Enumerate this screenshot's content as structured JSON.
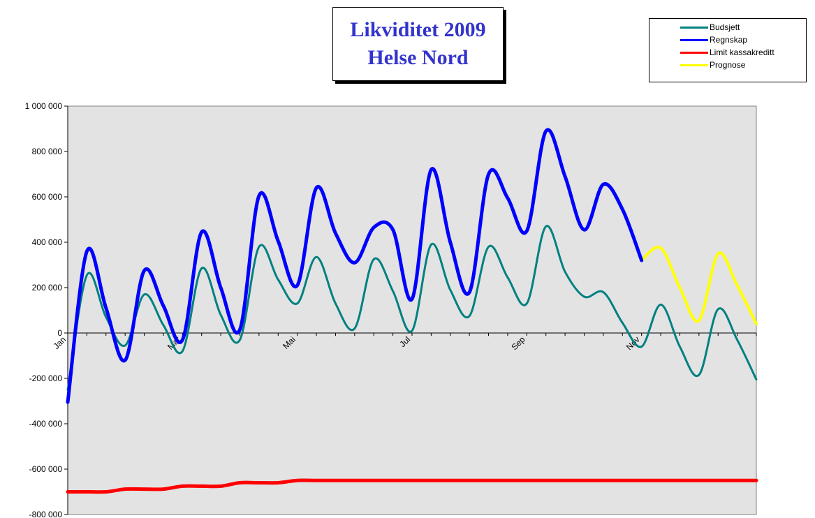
{
  "chart_data": {
    "type": "line",
    "title_lines": [
      "Likviditet 2009",
      "Helse Nord"
    ],
    "y_ticks": [
      "1 000 000",
      "800 000",
      "600 000",
      "400 000",
      "200 000",
      "0",
      "-200 000",
      "-400 000",
      "-600 000",
      "-800 000"
    ],
    "ylim": [
      -800000,
      1000000
    ],
    "xlim": [
      0,
      36
    ],
    "x_tick_labels": [
      {
        "x": 0,
        "label": "Jan"
      },
      {
        "x": 6,
        "label": "Mar"
      },
      {
        "x": 12,
        "label": "Mai"
      },
      {
        "x": 18,
        "label": "Jul"
      },
      {
        "x": 24,
        "label": "Sep"
      },
      {
        "x": 30,
        "label": "Nov"
      }
    ],
    "grid": false,
    "legend_position": "top-right",
    "plot_background": "#e3e3e3",
    "series": [
      {
        "name": "Budsjett",
        "color": "#008080",
        "width": 3,
        "x": [
          0,
          1,
          2,
          3,
          4,
          5,
          6,
          7,
          8,
          9,
          10,
          11,
          12,
          13,
          14,
          15,
          16,
          17,
          18,
          19,
          20,
          21,
          22,
          23,
          24,
          25,
          26,
          27,
          28,
          29,
          30,
          31,
          32,
          33,
          34,
          35,
          36
        ],
        "values": [
          -250000,
          255000,
          70000,
          -55000,
          170000,
          35000,
          -80000,
          285000,
          80000,
          -30000,
          380000,
          235000,
          130000,
          335000,
          130000,
          20000,
          325000,
          185000,
          10000,
          390000,
          190000,
          75000,
          380000,
          245000,
          130000,
          470000,
          270000,
          160000,
          180000,
          45000,
          -60000,
          125000,
          -60000,
          -185000,
          105000,
          -30000,
          -205000
        ]
      },
      {
        "name": "Regnskap",
        "color": "#0000ff",
        "width": 5,
        "x": [
          0,
          1,
          2,
          3,
          4,
          5,
          6,
          7,
          8,
          9,
          10,
          11,
          12,
          13,
          14,
          15,
          16,
          17,
          18,
          19,
          20,
          21,
          22,
          23,
          24,
          25,
          26,
          27,
          28,
          29,
          30
        ],
        "values": [
          -305000,
          360000,
          110000,
          -120000,
          275000,
          120000,
          -30000,
          445000,
          200000,
          15000,
          605000,
          405000,
          210000,
          640000,
          440000,
          310000,
          465000,
          455000,
          150000,
          720000,
          400000,
          180000,
          700000,
          595000,
          450000,
          890000,
          690000,
          455000,
          655000,
          545000,
          320000
        ]
      },
      {
        "name": "Limit kassakreditt",
        "color": "#ff0000",
        "width": 5,
        "x": [
          0,
          1,
          2,
          3,
          4,
          5,
          6,
          7,
          8,
          9,
          10,
          11,
          12,
          13,
          14,
          15,
          16,
          17,
          18,
          19,
          20,
          21,
          22,
          23,
          24,
          25,
          26,
          27,
          28,
          29,
          30,
          31,
          32,
          33,
          34,
          35,
          36
        ],
        "values": [
          -700000,
          -700000,
          -700000,
          -688000,
          -688000,
          -688000,
          -675000,
          -675000,
          -675000,
          -660000,
          -660000,
          -660000,
          -650000,
          -650000,
          -650000,
          -650000,
          -650000,
          -650000,
          -650000,
          -650000,
          -650000,
          -650000,
          -650000,
          -650000,
          -650000,
          -650000,
          -650000,
          -650000,
          -650000,
          -650000,
          -650000,
          -650000,
          -650000,
          -650000,
          -650000,
          -650000,
          -650000
        ]
      },
      {
        "name": "Prognose",
        "color": "#ffff00",
        "width": 4,
        "x": [
          30,
          31,
          32,
          33,
          34,
          35,
          36
        ],
        "values": [
          320000,
          375000,
          200000,
          55000,
          350000,
          210000,
          40000
        ]
      }
    ]
  }
}
